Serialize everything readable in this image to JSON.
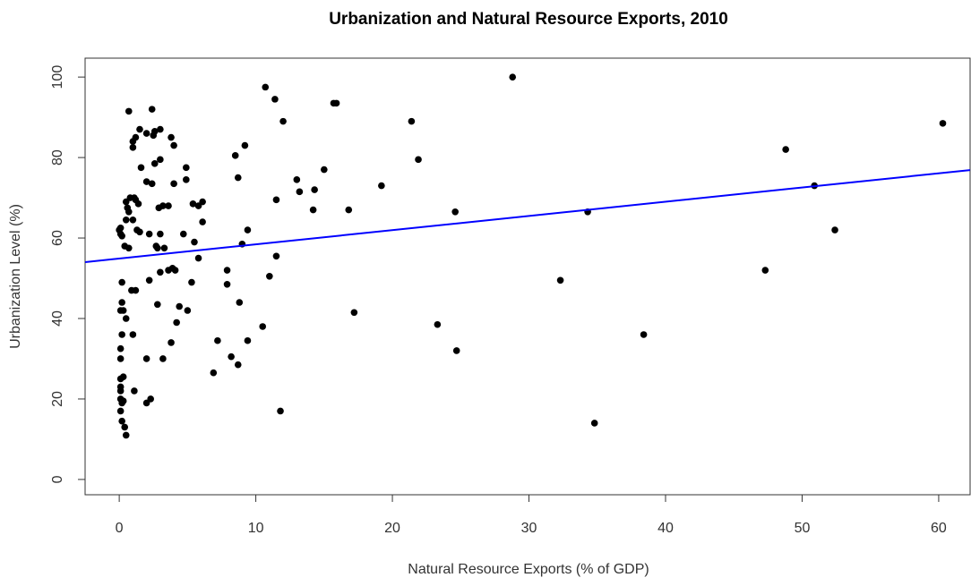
{
  "chart_data": {
    "type": "scatter",
    "title": "Urbanization and Natural Resource Exports, 2010",
    "x_label": "Natural Resource Exports (% of GDP)",
    "y_label": "Urbanization Level (%)",
    "xlim": [
      -2.5,
      62.3
    ],
    "ylim": [
      -3.8,
      104.7
    ],
    "xticks": [
      0,
      10,
      20,
      30,
      40,
      50,
      60
    ],
    "yticks": [
      0,
      20,
      40,
      60,
      80,
      100
    ],
    "color": "#000000",
    "trendline": {
      "intercept": 54.9,
      "slope": 0.353,
      "color": "#0000ff"
    },
    "series": [
      {
        "name": "Countries",
        "color": "#000000",
        "x": [
          0.0,
          0.1,
          0.2,
          0.1,
          0.2,
          0.2,
          0.1,
          0.3,
          0.2,
          0.1,
          0.1,
          0.1,
          0.3,
          0.1,
          0.1,
          0.1,
          0.2,
          0.3,
          0.1,
          0.2,
          0.4,
          0.5,
          0.5,
          0.4,
          0.5,
          0.5,
          0.6,
          0.7,
          0.8,
          0.7,
          0.7,
          1.0,
          1.0,
          1.2,
          1.5,
          1.0,
          1.1,
          1.2,
          1.3,
          1.5,
          1.4,
          0.9,
          1.2,
          1.0,
          1.1,
          1.6,
          2.0,
          2.0,
          2.0,
          2.0,
          2.2,
          2.4,
          2.3,
          2.2,
          2.4,
          2.5,
          2.6,
          2.6,
          2.7,
          2.8,
          2.8,
          2.9,
          3.0,
          3.0,
          3.0,
          3.0,
          3.2,
          3.2,
          3.3,
          3.6,
          3.6,
          3.8,
          3.8,
          3.9,
          4.0,
          4.0,
          4.1,
          4.2,
          4.4,
          4.7,
          4.9,
          4.9,
          5.0,
          5.3,
          5.4,
          5.5,
          5.8,
          5.8,
          6.1,
          6.1,
          6.9,
          7.2,
          7.9,
          7.9,
          8.2,
          8.5,
          8.7,
          8.7,
          8.8,
          9.0,
          9.2,
          9.4,
          9.4,
          10.5,
          10.7,
          11.0,
          11.4,
          11.5,
          11.5,
          11.8,
          12.0,
          13.0,
          13.2,
          14.2,
          14.3,
          15.0,
          15.7,
          15.9,
          16.8,
          17.2,
          19.2,
          21.4,
          21.9,
          23.3,
          24.6,
          24.7,
          28.8,
          32.3,
          34.3,
          34.8,
          38.4,
          47.3,
          48.8,
          50.9,
          52.4,
          60.3
        ],
        "values": [
          62,
          61,
          60.5,
          62.5,
          49,
          44,
          42,
          42,
          36,
          32.5,
          30,
          25,
          25.5,
          23,
          22,
          20,
          19,
          19.5,
          17,
          14.5,
          13,
          11,
          40,
          58,
          64.5,
          69,
          67.5,
          66.5,
          70,
          57.5,
          91.5,
          84,
          82.5,
          85,
          87,
          64.5,
          70,
          69.5,
          62,
          61.5,
          68.5,
          47,
          47,
          36,
          22,
          77.5,
          74,
          86,
          30,
          19,
          61,
          73.5,
          20,
          49.5,
          92,
          85.5,
          86.5,
          78.5,
          58,
          43.5,
          57.5,
          67.5,
          87,
          79.5,
          51.5,
          61,
          68,
          30,
          57.5,
          68,
          52,
          85,
          34,
          52.5,
          73.5,
          83,
          52,
          39,
          43,
          61,
          77.5,
          74.5,
          42,
          49,
          68.5,
          59,
          68,
          55,
          69,
          64,
          26.5,
          34.5,
          52,
          48.5,
          30.5,
          80.5,
          28.5,
          75,
          44,
          58.5,
          83,
          34.5,
          62,
          38,
          97.5,
          50.5,
          94.5,
          55.5,
          69.5,
          17,
          89,
          74.5,
          71.5,
          67,
          72,
          77,
          93.5,
          93.5,
          67,
          41.5,
          73,
          89,
          79.5,
          38.5,
          66.5,
          32,
          100,
          49.5,
          66.5,
          14,
          36,
          52,
          82,
          73,
          62,
          88.5
        ]
      }
    ]
  }
}
